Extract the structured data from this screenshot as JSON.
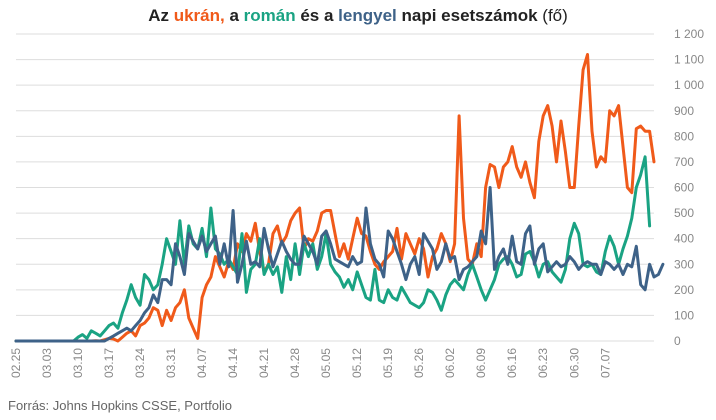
{
  "title": {
    "p1": "Az ",
    "ukraine": "ukrán,",
    "p2": " a ",
    "romania": "román",
    "p3": " és a ",
    "poland": "lengyel",
    "p4": " napi esetszámok ",
    "unit": "(fő)"
  },
  "source": "Forrás: Johns Hopkins CSSE, Portfolio",
  "colors": {
    "ukraine": "#f05a1a",
    "romania": "#1aa383",
    "poland": "#3e6288",
    "grid": "#dddddd",
    "axis_text": "#888888"
  },
  "chart_data": {
    "type": "line",
    "title": "Az ukrán, a román és a lengyel napi esetszámok (fő)",
    "x_start": "2020-02-25",
    "x_ticks": [
      "02.25",
      "03.03",
      "03.10",
      "03.17",
      "03.24",
      "03.31",
      "04.07",
      "04.14",
      "04.21",
      "04.28",
      "05.05",
      "05.12",
      "05.19",
      "05.26",
      "06.02",
      "06.09",
      "06.16",
      "06.23",
      "06.30",
      "07.07"
    ],
    "y_ticks": [
      "0",
      "100",
      "200",
      "300",
      "400",
      "500",
      "600",
      "700",
      "800",
      "900",
      "1 000",
      "1 100",
      "1 200"
    ],
    "ylim": [
      0,
      1200
    ],
    "grid": true,
    "series": [
      {
        "name": "ukrán",
        "color": "#f05a1a",
        "values": [
          0,
          0,
          0,
          0,
          0,
          0,
          0,
          0,
          0,
          0,
          0,
          0,
          0,
          0,
          0,
          0,
          0,
          0,
          1,
          0,
          5,
          10,
          8,
          0,
          15,
          30,
          40,
          20,
          60,
          70,
          90,
          130,
          120,
          60,
          120,
          80,
          130,
          150,
          200,
          90,
          50,
          10,
          170,
          220,
          250,
          330,
          290,
          250,
          310,
          280,
          380,
          350,
          420,
          390,
          460,
          350,
          270,
          300,
          420,
          450,
          380,
          410,
          470,
          500,
          520,
          360,
          400,
          390,
          430,
          500,
          510,
          510,
          420,
          330,
          380,
          320,
          400,
          480,
          420,
          410,
          350,
          300,
          280,
          310,
          330,
          350,
          440,
          320,
          420,
          380,
          340,
          400,
          360,
          250,
          330,
          360,
          420,
          380,
          310,
          380,
          880,
          480,
          320,
          300,
          380,
          330,
          600,
          690,
          680,
          600,
          680,
          700,
          760,
          680,
          640,
          700,
          620,
          560,
          780,
          880,
          920,
          840,
          700,
          860,
          740,
          600,
          600,
          840,
          1060,
          1120,
          820,
          680,
          720,
          700,
          900,
          880,
          920,
          760,
          600,
          580,
          830,
          840,
          820,
          820,
          700
        ]
      },
      {
        "name": "román",
        "color": "#1aa383",
        "values": [
          0,
          0,
          0,
          0,
          0,
          0,
          0,
          0,
          0,
          0,
          0,
          0,
          0,
          0,
          15,
          25,
          10,
          40,
          30,
          20,
          40,
          60,
          70,
          50,
          110,
          160,
          220,
          170,
          140,
          260,
          240,
          200,
          220,
          300,
          400,
          350,
          300,
          470,
          300,
          450,
          380,
          360,
          440,
          330,
          520,
          360,
          340,
          300,
          320,
          290,
          260,
          420,
          190,
          280,
          300,
          400,
          260,
          300,
          260,
          290,
          190,
          330,
          240,
          380,
          260,
          380,
          330,
          380,
          280,
          330,
          420,
          300,
          270,
          250,
          210,
          240,
          200,
          270,
          220,
          170,
          160,
          280,
          160,
          150,
          200,
          170,
          160,
          210,
          180,
          150,
          140,
          130,
          150,
          200,
          190,
          160,
          120,
          180,
          220,
          240,
          220,
          200,
          260,
          300,
          250,
          200,
          160,
          200,
          240,
          300,
          320,
          330,
          300,
          250,
          260,
          340,
          350,
          310,
          250,
          300,
          310,
          270,
          250,
          230,
          280,
          400,
          460,
          420,
          300,
          290,
          300,
          270,
          260,
          350,
          410,
          370,
          300,
          360,
          410,
          480,
          600,
          650,
          720,
          450
        ]
      },
      {
        "name": "lengyel",
        "color": "#3e6288",
        "values": [
          0,
          0,
          0,
          0,
          0,
          0,
          0,
          0,
          0,
          0,
          0,
          0,
          0,
          0,
          0,
          0,
          0,
          0,
          0,
          0,
          0,
          10,
          20,
          30,
          40,
          50,
          40,
          60,
          80,
          110,
          130,
          180,
          150,
          240,
          240,
          220,
          380,
          330,
          260,
          420,
          390,
          360,
          410,
          350,
          380,
          410,
          300,
          380,
          290,
          510,
          230,
          300,
          390,
          300,
          310,
          290,
          440,
          360,
          290,
          340,
          390,
          350,
          320,
          300,
          300,
          410,
          380,
          350,
          300,
          410,
          430,
          380,
          320,
          310,
          300,
          290,
          330,
          300,
          310,
          520,
          380,
          320,
          300,
          250,
          430,
          400,
          350,
          300,
          240,
          300,
          330,
          260,
          420,
          390,
          360,
          280,
          310,
          380,
          320,
          330,
          240,
          280,
          290,
          310,
          330,
          430,
          380,
          600,
          280,
          330,
          360,
          300,
          410,
          310,
          300,
          420,
          450,
          300,
          360,
          380,
          270,
          290,
          310,
          290,
          300,
          330,
          310,
          280,
          300,
          310,
          300,
          300,
          260,
          310,
          300,
          280,
          300,
          260,
          300,
          290,
          370,
          220,
          200,
          300,
          250,
          260,
          300
        ]
      }
    ]
  }
}
